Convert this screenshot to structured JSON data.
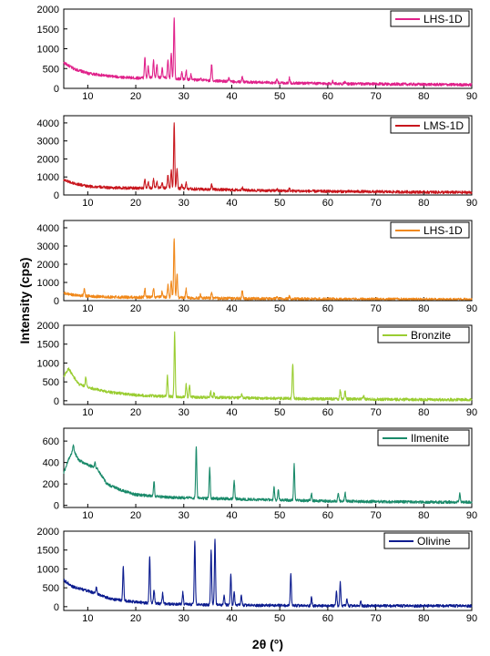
{
  "figure": {
    "ylabel": "Intensity (cps)",
    "xlabel": "2θ (°)"
  },
  "chart_data": [
    {
      "type": "line",
      "series": [
        {
          "name": "LHS-1D",
          "color": "#e0218a"
        }
      ],
      "xlim": [
        5,
        90
      ],
      "ylim": [
        0,
        2000
      ],
      "xticks": [
        10,
        20,
        30,
        40,
        50,
        60,
        70,
        80,
        90
      ],
      "yticks": [
        0,
        500,
        1000,
        1500,
        2000
      ],
      "baseline": [
        [
          5,
          650
        ],
        [
          7,
          500
        ],
        [
          10,
          380
        ],
        [
          15,
          300
        ],
        [
          20,
          260
        ],
        [
          25,
          280
        ],
        [
          30,
          230
        ],
        [
          40,
          170
        ],
        [
          50,
          140
        ],
        [
          60,
          120
        ],
        [
          70,
          110
        ],
        [
          80,
          100
        ],
        [
          90,
          90
        ]
      ],
      "peaks": [
        [
          21.9,
          800
        ],
        [
          22.6,
          550
        ],
        [
          23.7,
          690
        ],
        [
          24.4,
          600
        ],
        [
          25.5,
          500
        ],
        [
          26.7,
          700
        ],
        [
          27.4,
          900
        ],
        [
          28.0,
          1800
        ],
        [
          29.6,
          400
        ],
        [
          30.5,
          450
        ],
        [
          31.5,
          350
        ],
        [
          33.5,
          280
        ],
        [
          35.8,
          600
        ],
        [
          39.4,
          260
        ],
        [
          42.2,
          300
        ],
        [
          49.4,
          230
        ],
        [
          52.0,
          260
        ],
        [
          61.0,
          180
        ],
        [
          63.5,
          160
        ]
      ],
      "legend_position": "top-right"
    },
    {
      "type": "line",
      "series": [
        {
          "name": "LMS-1D",
          "color": "#c8161d"
        }
      ],
      "xlim": [
        5,
        90
      ],
      "ylim": [
        0,
        4400
      ],
      "xticks": [
        10,
        20,
        30,
        40,
        50,
        60,
        70,
        80,
        90
      ],
      "yticks": [
        0,
        1000,
        2000,
        3000,
        4000
      ],
      "baseline": [
        [
          5,
          850
        ],
        [
          7,
          650
        ],
        [
          10,
          480
        ],
        [
          15,
          400
        ],
        [
          20,
          380
        ],
        [
          25,
          400
        ],
        [
          30,
          350
        ],
        [
          40,
          280
        ],
        [
          50,
          230
        ],
        [
          60,
          200
        ],
        [
          70,
          180
        ],
        [
          80,
          160
        ],
        [
          90,
          140
        ]
      ],
      "peaks": [
        [
          21.9,
          850
        ],
        [
          22.6,
          700
        ],
        [
          23.7,
          900
        ],
        [
          24.4,
          780
        ],
        [
          25.5,
          650
        ],
        [
          26.7,
          1150
        ],
        [
          27.4,
          1400
        ],
        [
          28.0,
          4000
        ],
        [
          28.6,
          1500
        ],
        [
          29.6,
          600
        ],
        [
          30.5,
          700
        ],
        [
          35.8,
          600
        ],
        [
          42.2,
          450
        ],
        [
          49.4,
          330
        ],
        [
          52.0,
          350
        ]
      ],
      "legend_position": "top-right"
    },
    {
      "type": "line",
      "series": [
        {
          "name": "LHS-1D",
          "color": "#f0881a"
        }
      ],
      "xlim": [
        5,
        90
      ],
      "ylim": [
        0,
        4400
      ],
      "xticks": [
        10,
        20,
        30,
        40,
        50,
        60,
        70,
        80,
        90
      ],
      "yticks": [
        0,
        1000,
        2000,
        3000,
        4000
      ],
      "baseline": [
        [
          5,
          400
        ],
        [
          7,
          320
        ],
        [
          10,
          250
        ],
        [
          15,
          200
        ],
        [
          20,
          180
        ],
        [
          25,
          200
        ],
        [
          30,
          160
        ],
        [
          40,
          120
        ],
        [
          50,
          100
        ],
        [
          60,
          90
        ],
        [
          70,
          80
        ],
        [
          80,
          70
        ],
        [
          90,
          60
        ]
      ],
      "peaks": [
        [
          9.3,
          650
        ],
        [
          21.9,
          650
        ],
        [
          23.7,
          700
        ],
        [
          25.5,
          500
        ],
        [
          26.7,
          850
        ],
        [
          27.4,
          1100
        ],
        [
          28.0,
          3450
        ],
        [
          28.6,
          1500
        ],
        [
          30.5,
          650
        ],
        [
          33.5,
          350
        ],
        [
          35.8,
          400
        ],
        [
          42.2,
          600
        ],
        [
          49.4,
          230
        ],
        [
          52.0,
          250
        ]
      ],
      "legend_position": "top-right"
    },
    {
      "type": "line",
      "series": [
        {
          "name": "Bronzite",
          "color": "#9acd32"
        }
      ],
      "xlim": [
        5,
        90
      ],
      "ylim": [
        -100,
        2000
      ],
      "xticks": [
        10,
        20,
        30,
        40,
        50,
        60,
        70,
        80,
        90
      ],
      "yticks": [
        0,
        500,
        1000,
        1500,
        2000
      ],
      "baseline": [
        [
          5,
          650
        ],
        [
          6,
          850
        ],
        [
          8,
          450
        ],
        [
          10,
          350
        ],
        [
          15,
          220
        ],
        [
          20,
          150
        ],
        [
          25,
          120
        ],
        [
          30,
          100
        ],
        [
          40,
          80
        ],
        [
          50,
          60
        ],
        [
          60,
          50
        ],
        [
          70,
          40
        ],
        [
          80,
          30
        ],
        [
          90,
          30
        ]
      ],
      "peaks": [
        [
          9.6,
          650
        ],
        [
          26.6,
          650
        ],
        [
          28.1,
          1800
        ],
        [
          30.5,
          450
        ],
        [
          31.2,
          420
        ],
        [
          35.6,
          250
        ],
        [
          36.3,
          200
        ],
        [
          42.1,
          180
        ],
        [
          52.7,
          1000
        ],
        [
          62.6,
          300
        ],
        [
          63.6,
          250
        ],
        [
          67.5,
          130
        ]
      ],
      "legend_position": "top-right"
    },
    {
      "type": "line",
      "series": [
        {
          "name": "Ilmenite",
          "color": "#1a8a6a"
        }
      ],
      "xlim": [
        5,
        90
      ],
      "ylim": [
        -20,
        720
      ],
      "xticks": [
        10,
        20,
        30,
        40,
        50,
        60,
        70,
        80,
        90
      ],
      "yticks": [
        0,
        200,
        400,
        600
      ],
      "baseline": [
        [
          5,
          300
        ],
        [
          6,
          430
        ],
        [
          7,
          520
        ],
        [
          8,
          430
        ],
        [
          9,
          400
        ],
        [
          11,
          360
        ],
        [
          12,
          340
        ],
        [
          14,
          200
        ],
        [
          17,
          140
        ],
        [
          20,
          100
        ],
        [
          25,
          80
        ],
        [
          30,
          70
        ],
        [
          40,
          60
        ],
        [
          50,
          50
        ],
        [
          60,
          40
        ],
        [
          70,
          35
        ],
        [
          80,
          30
        ],
        [
          90,
          30
        ]
      ],
      "peaks": [
        [
          7.0,
          560
        ],
        [
          11.5,
          400
        ],
        [
          23.8,
          220
        ],
        [
          32.6,
          560
        ],
        [
          35.4,
          350
        ],
        [
          40.5,
          230
        ],
        [
          48.8,
          170
        ],
        [
          49.7,
          150
        ],
        [
          53.0,
          380
        ],
        [
          56.6,
          110
        ],
        [
          62.2,
          110
        ],
        [
          63.6,
          120
        ],
        [
          87.5,
          120
        ]
      ],
      "legend_position": "top-right"
    },
    {
      "type": "line",
      "series": [
        {
          "name": "Olivine",
          "color": "#0c1c8f"
        }
      ],
      "xlim": [
        5,
        90
      ],
      "ylim": [
        -100,
        2000
      ],
      "xticks": [
        10,
        20,
        30,
        40,
        50,
        60,
        70,
        80,
        90
      ],
      "yticks": [
        0,
        500,
        1000,
        1500,
        2000
      ],
      "baseline": [
        [
          5,
          700
        ],
        [
          7,
          520
        ],
        [
          10,
          420
        ],
        [
          15,
          200
        ],
        [
          20,
          120
        ],
        [
          25,
          80
        ],
        [
          30,
          60
        ],
        [
          40,
          40
        ],
        [
          50,
          30
        ],
        [
          60,
          20
        ],
        [
          70,
          20
        ],
        [
          80,
          20
        ],
        [
          90,
          20
        ]
      ],
      "peaks": [
        [
          11.8,
          500
        ],
        [
          17.4,
          1050
        ],
        [
          22.9,
          1350
        ],
        [
          23.8,
          450
        ],
        [
          25.6,
          350
        ],
        [
          29.8,
          380
        ],
        [
          32.3,
          1750
        ],
        [
          35.7,
          1500
        ],
        [
          36.5,
          1800
        ],
        [
          38.4,
          300
        ],
        [
          39.8,
          850
        ],
        [
          40.5,
          400
        ],
        [
          42.0,
          300
        ],
        [
          52.3,
          850
        ],
        [
          56.6,
          250
        ],
        [
          61.8,
          400
        ],
        [
          62.6,
          650
        ],
        [
          64.0,
          200
        ],
        [
          66.9,
          150
        ]
      ],
      "legend_position": "top-right"
    }
  ]
}
